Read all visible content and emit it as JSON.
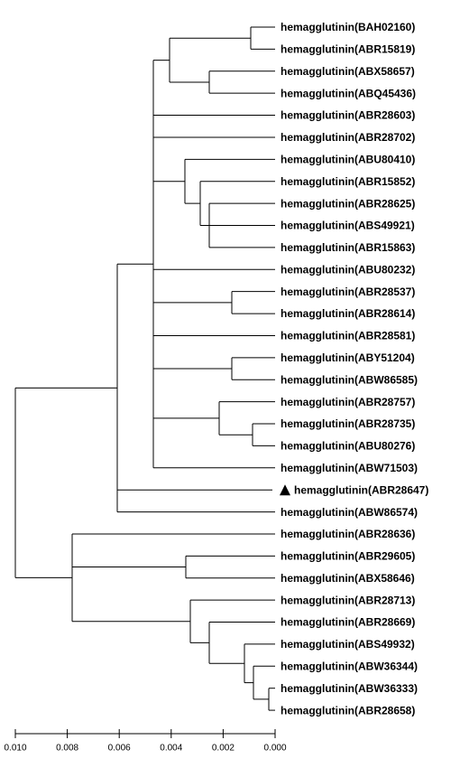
{
  "leaves": [
    "hemagglutinin(BAH02160)",
    "hemagglutinin(ABR15819)",
    "hemagglutinin(ABX58657)",
    "hemagglutinin(ABQ45436)",
    "hemagglutinin(ABR28603)",
    "hemagglutinin(ABR28702)",
    "hemagglutinin(ABU80410)",
    "hemagglutinin(ABR15852)",
    "hemagglutinin(ABR28625)",
    "hemagglutinin(ABS49921)",
    "hemagglutinin(ABR15863)",
    "hemagglutinin(ABU80232)",
    "hemagglutinin(ABR28537)",
    "hemagglutinin(ABR28614)",
    "hemagglutinin(ABR28581)",
    "hemagglutinin(ABY51204)",
    "hemagglutinin(ABW86585)",
    "hemagglutinin(ABR28757)",
    "hemagglutinin(ABR28735)",
    "hemagglutinin(ABU80276)",
    "hemagglutinin(ABW71503)",
    "hemagglutinin(ABR28647)",
    "hemagglutinin(ABW86574)",
    "hemagglutinin(ABR28636)",
    "hemagglutinin(ABR29605)",
    "hemagglutinin(ABX58646)",
    "hemagglutinin(ABR28713)",
    "hemagglutinin(ABR28669)",
    "hemagglutinin(ABS49932)",
    "hemagglutinin(ABW36344)",
    "hemagglutinin(ABW36333)",
    "hemagglutinin(ABR28658)"
  ],
  "scale": {
    "xlim": [
      0.01,
      0
    ],
    "ticks": [
      {
        "value": 0.01,
        "label": "0.010"
      },
      {
        "value": 0.008,
        "label": "0.008"
      },
      {
        "value": 0.006,
        "label": "0.006"
      },
      {
        "value": 0.004,
        "label": "0.004"
      },
      {
        "value": 0.002,
        "label": "0.002"
      },
      {
        "value": 0,
        "label": "0.000"
      }
    ]
  }
}
